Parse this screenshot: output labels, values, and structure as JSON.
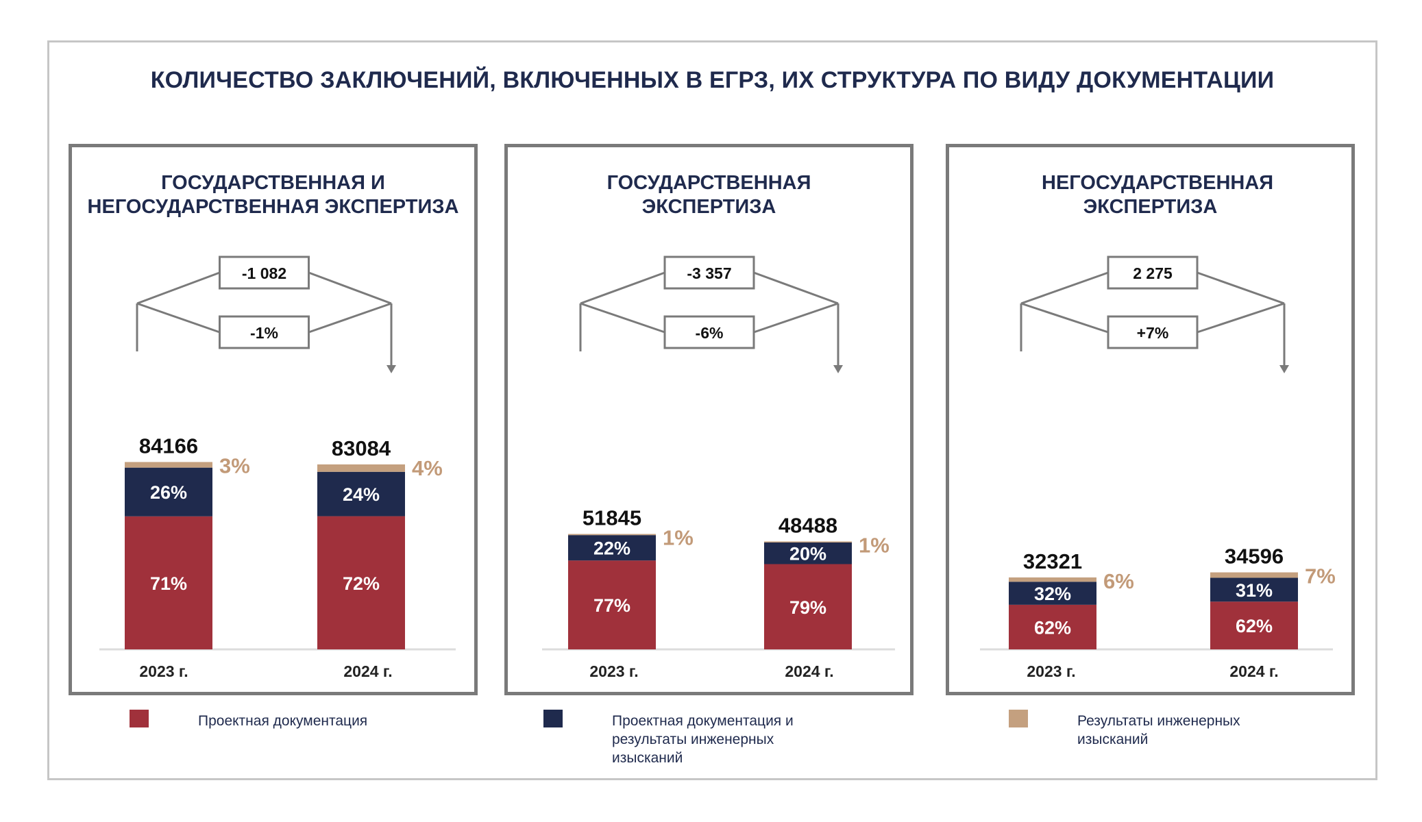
{
  "title": "КОЛИЧЕСТВО ЗАКЛЮЧЕНИЙ, ВКЛЮЧЕННЫХ В ЕГРЗ, ИХ СТРУКТУРА ПО ВИДУ ДОКУМЕНТАЦИИ",
  "colors": {
    "project": "#a0313b",
    "combined": "#1f2a4d",
    "survey": "#c4a07f",
    "survey_text": "#c29a78",
    "title": "#1f2a4d",
    "frame": "#c6c6c6",
    "panel_border": "#7a7a7a"
  },
  "legend": [
    {
      "label": "Проектная документация",
      "color": "#a0313b"
    },
    {
      "label": "Проектная документация и результаты инженерных изысканий",
      "color": "#1f2a4d"
    },
    {
      "label": "Результаты инженерных изысканий",
      "color": "#c4a07f"
    }
  ],
  "chart_data": [
    {
      "type": "bar",
      "title": "ГОСУДАРСТВЕННАЯ И НЕГОСУДАРСТВЕННАЯ ЭКСПЕРТИЗА",
      "categories": [
        "2023 г.",
        "2024 г."
      ],
      "totals": [
        84166,
        83084
      ],
      "change_abs": "-1 082",
      "change_pct": "-1%",
      "series": [
        {
          "name": "Проектная документация",
          "values": [
            71,
            72
          ],
          "labels": [
            "71%",
            "72%"
          ]
        },
        {
          "name": "Проектная документация и результаты инженерных изысканий",
          "values": [
            26,
            24
          ],
          "labels": [
            "26%",
            "24%"
          ]
        },
        {
          "name": "Результаты инженерных изысканий",
          "values": [
            3,
            4
          ],
          "labels": [
            "3%",
            "4%"
          ]
        }
      ]
    },
    {
      "type": "bar",
      "title": "ГОСУДАРСТВЕННАЯ ЭКСПЕРТИЗА",
      "categories": [
        "2023 г.",
        "2024 г."
      ],
      "totals": [
        51845,
        48488
      ],
      "change_abs": "-3 357",
      "change_pct": "-6%",
      "series": [
        {
          "name": "Проектная документация",
          "values": [
            77,
            79
          ],
          "labels": [
            "77%",
            "79%"
          ]
        },
        {
          "name": "Проектная документация и результаты инженерных изысканий",
          "values": [
            22,
            20
          ],
          "labels": [
            "22%",
            "20%"
          ]
        },
        {
          "name": "Результаты инженерных изысканий",
          "values": [
            1,
            1
          ],
          "labels": [
            "1%",
            "1%"
          ]
        }
      ]
    },
    {
      "type": "bar",
      "title": "НЕГОСУДАРСТВЕННАЯ ЭКСПЕРТИЗА",
      "categories": [
        "2023 г.",
        "2024 г."
      ],
      "totals": [
        32321,
        34596
      ],
      "change_abs": "2 275",
      "change_pct": "+7%",
      "series": [
        {
          "name": "Проектная документация",
          "values": [
            62,
            62
          ],
          "labels": [
            "62%",
            "62%"
          ]
        },
        {
          "name": "Проектная документация и результаты инженерных изысканий",
          "values": [
            32,
            31
          ],
          "labels": [
            "32%",
            "31%"
          ]
        },
        {
          "name": "Результаты инженерных изысканий",
          "values": [
            6,
            7
          ],
          "labels": [
            "6%",
            "7%"
          ]
        }
      ]
    }
  ]
}
